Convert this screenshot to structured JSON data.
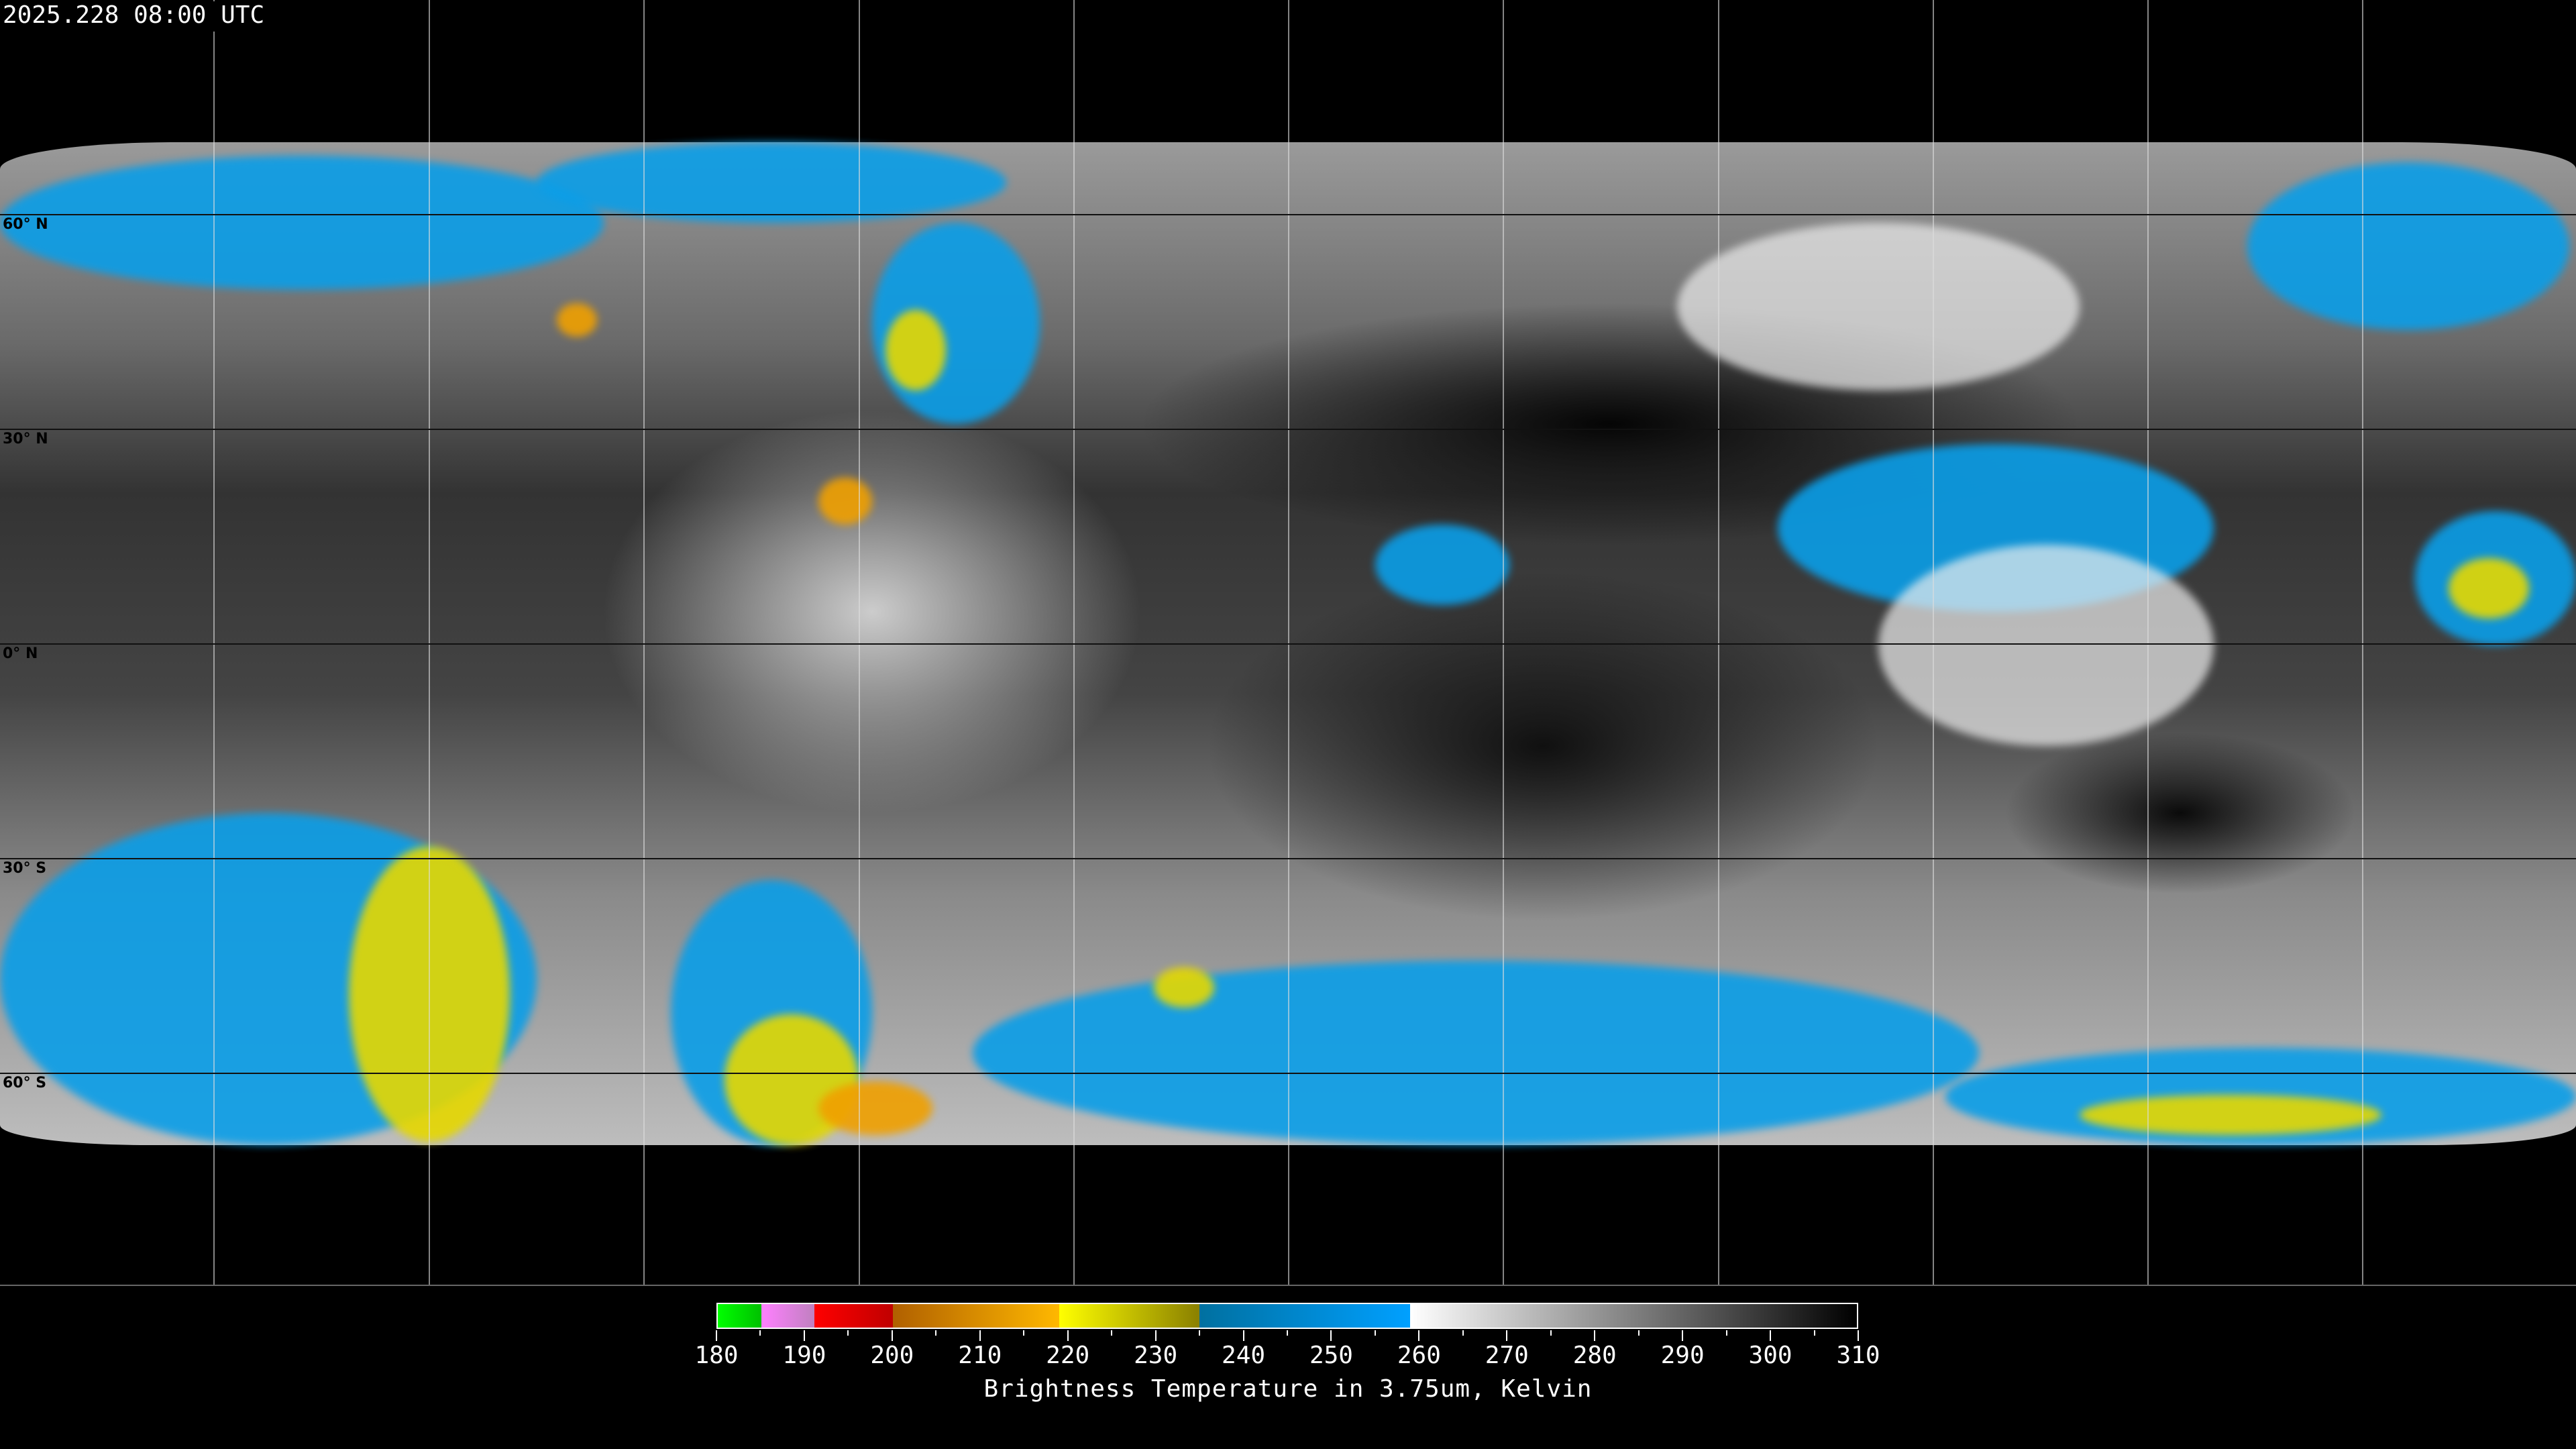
{
  "timestamp": "2025.228 08:00 UTC",
  "map": {
    "projection": "equirectangular",
    "latitude_labels": [
      "60° N",
      "30° N",
      "0° N",
      "30° S",
      "60° S"
    ],
    "graticule_spacing_degrees": 30
  },
  "colorbar": {
    "title": "Brightness Temperature in 3.75um, Kelvin",
    "min": 180,
    "max": 310,
    "tick_labels": [
      "180",
      "190",
      "200",
      "210",
      "220",
      "230",
      "240",
      "250",
      "260",
      "270",
      "280",
      "290",
      "300",
      "310"
    ],
    "segments": [
      {
        "from": 180,
        "to": 185,
        "colors": [
          "#00ff00",
          "#00c000"
        ]
      },
      {
        "from": 185,
        "to": 191,
        "colors": [
          "#ff80ff",
          "#c080c0"
        ]
      },
      {
        "from": 191,
        "to": 200,
        "colors": [
          "#ff0000",
          "#c00000"
        ]
      },
      {
        "from": 200,
        "to": 219,
        "colors": [
          "#b06000",
          "#ffb800"
        ]
      },
      {
        "from": 219,
        "to": 235,
        "colors": [
          "#ffff00",
          "#8a8000"
        ]
      },
      {
        "from": 235,
        "to": 259,
        "colors": [
          "#0070a0",
          "#00a0ff"
        ]
      },
      {
        "from": 259,
        "to": 310,
        "colors": [
          "#ffffff",
          "#000000"
        ]
      }
    ]
  }
}
